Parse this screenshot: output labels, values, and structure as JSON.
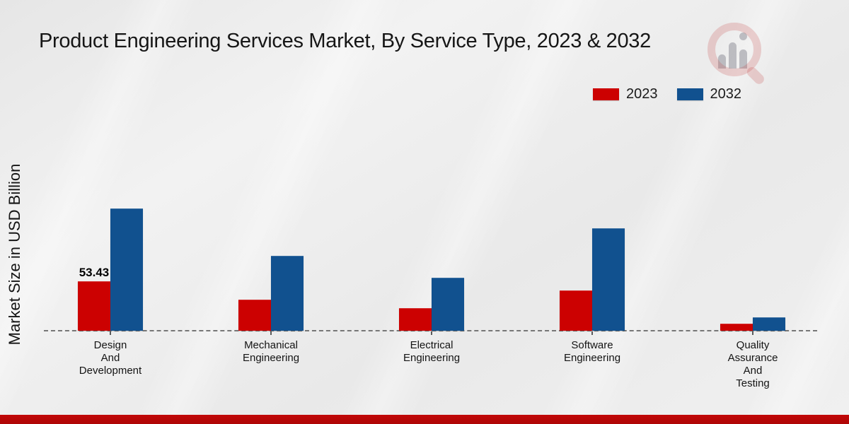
{
  "page": {
    "title": "Product Engineering Services Market, By Service Type, 2023 & 2032"
  },
  "chart_data": {
    "type": "bar",
    "title": "Product Engineering Services Market, By Service Type, 2023 & 2032",
    "xlabel": "",
    "ylabel": "Market Size in USD Billion",
    "ylim": [
      0,
      140
    ],
    "grid": false,
    "baseline_style": "dashed",
    "legend_position": "top-right",
    "categories": [
      "Design And Development",
      "Mechanical Engineering",
      "Electrical Engineering",
      "Software Engineering",
      "Quality Assurance And Testing"
    ],
    "category_lines": [
      [
        "Design",
        "And",
        "Development"
      ],
      [
        "Mechanical",
        "Engineering"
      ],
      [
        "Electrical",
        "Engineering"
      ],
      [
        "Software",
        "Engineering"
      ],
      [
        "Quality",
        "Assurance",
        "And",
        "Testing"
      ]
    ],
    "series": [
      {
        "name": "2023",
        "color": "#cc0101",
        "values": [
          53.43,
          33.6,
          24.4,
          43.5,
          7.6
        ]
      },
      {
        "name": "2032",
        "color": "#11518f",
        "values": [
          132.0,
          80.9,
          57.2,
          110.7,
          14.5
        ]
      }
    ],
    "annotations": [
      {
        "category_index": 0,
        "series_index": 0,
        "text": "53.43"
      }
    ]
  },
  "branding": {
    "logo_icon": "magnifier-bar-chart-logo",
    "bottom_strip_color": "#b50808"
  },
  "colors": {
    "series_2023": "#cc0101",
    "series_2032": "#11518f",
    "background": "#ececec"
  }
}
